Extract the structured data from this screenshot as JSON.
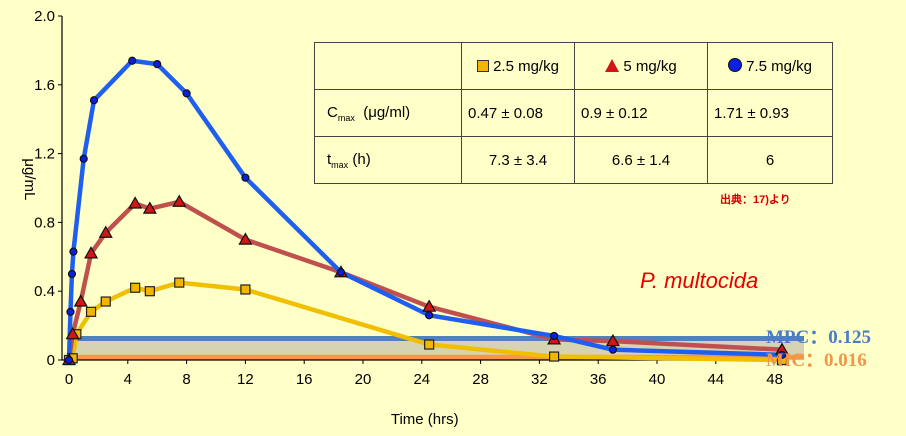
{
  "chart_data": {
    "type": "line",
    "xlabel": "Time (hrs)",
    "ylabel": "μg/mL",
    "xlim": [
      0,
      50
    ],
    "ylim": [
      0,
      2.0
    ],
    "x_ticks": [
      "0",
      "4",
      "8",
      "12",
      "16",
      "20",
      "24",
      "28",
      "32",
      "36",
      "40",
      "44",
      "48"
    ],
    "y_ticks": [
      "0",
      "0.4",
      "0.8",
      "1.2",
      "1.6",
      "2.0"
    ],
    "series": [
      {
        "name": "2.5 mg/kg",
        "color": "#f0c000",
        "marker": "square",
        "marker_fill": "#f2b500",
        "points": [
          [
            0,
            0
          ],
          [
            0.25,
            0.01
          ],
          [
            0.5,
            0.15
          ],
          [
            1.5,
            0.28
          ],
          [
            2.5,
            0.34
          ],
          [
            4.5,
            0.42
          ],
          [
            5.5,
            0.4
          ],
          [
            7.5,
            0.45
          ],
          [
            12,
            0.41
          ],
          [
            24.5,
            0.09
          ],
          [
            33,
            0.02
          ],
          [
            48.5,
            0
          ]
        ]
      },
      {
        "name": "5 mg/kg",
        "color": "#c0504d",
        "marker": "triangle",
        "marker_fill": "#d21515",
        "points": [
          [
            0,
            0
          ],
          [
            0.25,
            0.15
          ],
          [
            0.8,
            0.34
          ],
          [
            1.5,
            0.62
          ],
          [
            2.5,
            0.74
          ],
          [
            4.5,
            0.91
          ],
          [
            5.5,
            0.88
          ],
          [
            7.5,
            0.92
          ],
          [
            12,
            0.7
          ],
          [
            18.5,
            0.51
          ],
          [
            24.5,
            0.31
          ],
          [
            33,
            0.12
          ],
          [
            37,
            0.11
          ],
          [
            48.5,
            0.06
          ]
        ]
      },
      {
        "name": "7.5 mg/kg",
        "color": "#1f5ff0",
        "marker": "circle",
        "marker_fill": "#0b1fe0",
        "points": [
          [
            0,
            0
          ],
          [
            0.1,
            0.28
          ],
          [
            0.2,
            0.5
          ],
          [
            0.3,
            0.63
          ],
          [
            1,
            1.17
          ],
          [
            1.7,
            1.51
          ],
          [
            4.3,
            1.74
          ],
          [
            6,
            1.72
          ],
          [
            8,
            1.55
          ],
          [
            12,
            1.06
          ],
          [
            18.5,
            0.51
          ],
          [
            24.5,
            0.26
          ],
          [
            33,
            0.14
          ],
          [
            37,
            0.06
          ],
          [
            48.5,
            0.03
          ]
        ]
      }
    ],
    "reference_lines": [
      {
        "label": "MPC：0.125",
        "value": 0.125,
        "color": "#4f81bd"
      },
      {
        "label": "MIC：0.016",
        "value": 0.016,
        "color": "#f79646"
      }
    ],
    "legend_position": "top-right table"
  },
  "table": {
    "headers": [
      "2.5 mg/kg",
      "5 mg/kg",
      "7.5 mg/kg"
    ],
    "rows": [
      {
        "label_main": "C",
        "label_sub": "max",
        "label_unit": "(μg/ml)",
        "values": [
          "0.47 ± 0.08",
          "0.9 ± 0.12",
          "1.71 ± 0.93"
        ]
      },
      {
        "label_main": "t",
        "label_sub": "max",
        "label_unit": "(h)",
        "values": [
          "7.3 ± 3.4",
          "6.6 ± 1.4",
          "6"
        ]
      }
    ]
  },
  "annotations": {
    "source_note": "出典：17)より",
    "species": "P. multocida",
    "mpc": "MPC：0.125",
    "mic": "MIC：0.016"
  }
}
